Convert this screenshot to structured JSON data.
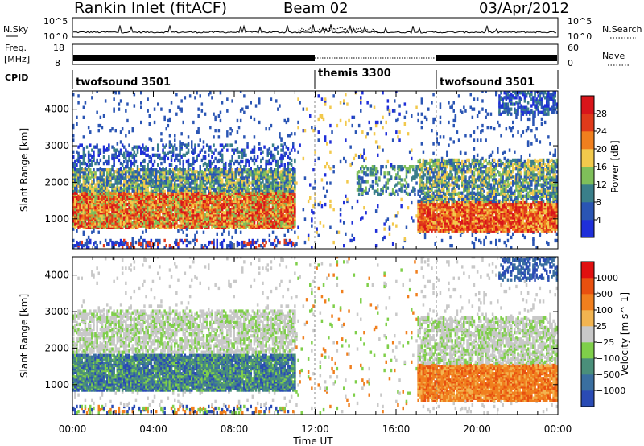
{
  "header": {
    "station": "Rankin Inlet (fitACF)",
    "beam": "Beam 02",
    "date": "03/Apr/2012"
  },
  "noise_panel": {
    "left_label": "N.Sky",
    "right_label": "N.Search",
    "left_ticks": [
      "10^5",
      "10^0"
    ],
    "right_ticks": [
      "10^5",
      "10^0"
    ]
  },
  "freq_panel": {
    "left_label_1": "Freq.",
    "left_label_2": "[MHz]",
    "right_label": "Nave",
    "left_ticks": [
      "18",
      "8"
    ],
    "right_ticks": [
      "60",
      "0"
    ]
  },
  "cpid_panel": {
    "label": "CPID",
    "segments": [
      {
        "name": "twofsound 3501",
        "start_hour": 0,
        "end_hour": 12
      },
      {
        "name": "themis 3300",
        "start_hour": 12,
        "end_hour": 18
      },
      {
        "name": "twofsound 3501",
        "start_hour": 18,
        "end_hour": 24
      }
    ]
  },
  "chart_data": [
    {
      "type": "heatmap",
      "title": "Power",
      "xlabel": "Time UT",
      "ylabel": "Slant Range [km]",
      "x_ticks": [
        "00:00",
        "04:00",
        "08:00",
        "12:00",
        "16:00",
        "20:00",
        "00:00"
      ],
      "y_ticks": [
        1000,
        2000,
        3000,
        4000
      ],
      "ylim": [
        180,
        4500
      ],
      "colorbar": {
        "label": "Power [dB]",
        "ticks": [
          4,
          8,
          12,
          16,
          20,
          24,
          28
        ],
        "colors": [
          "#1f2fd9",
          "#2a55b4",
          "#3a7f8a",
          "#7fbf5a",
          "#f2c94c",
          "#f07f1e",
          "#e03a1a",
          "#d9151a"
        ]
      }
    },
    {
      "type": "heatmap",
      "title": "Velocity",
      "xlabel": "Time UT",
      "ylabel": "Slant Range [km]",
      "x_ticks": [
        "00:00",
        "04:00",
        "08:00",
        "12:00",
        "16:00",
        "20:00",
        "00:00"
      ],
      "y_ticks": [
        1000,
        2000,
        3000,
        4000
      ],
      "ylim": [
        180,
        4500
      ],
      "colorbar": {
        "label": "Velocity [m s^-1]",
        "ticks": [
          "1000",
          "500",
          "100",
          "25",
          "−25",
          "−100",
          "−500",
          "−1000"
        ],
        "colors": [
          "#2a4bb5",
          "#3a6fa0",
          "#4a8f7a",
          "#7fcf4a",
          "#c8c8c8",
          "#f2b450",
          "#f07f1e",
          "#e85010",
          "#e01010"
        ]
      }
    }
  ]
}
